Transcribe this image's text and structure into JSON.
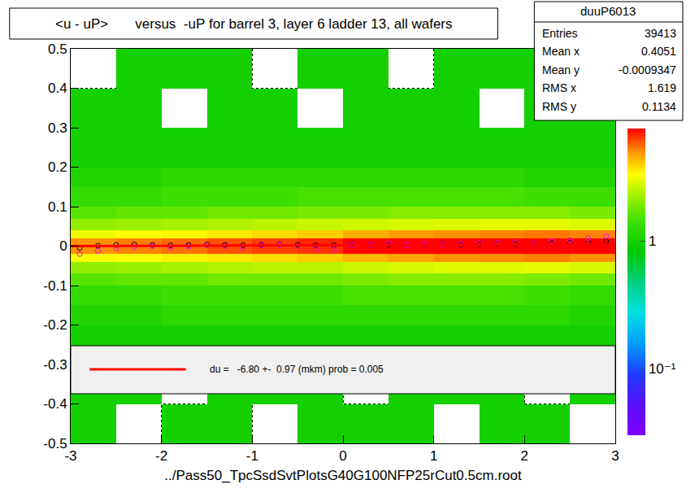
{
  "chart_data": {
    "type": "heatmap",
    "title": "<u - uP>       versus  -uP for barrel 3, layer 6 ladder 13, all wafers",
    "x_label": "../Pass50_TpcSsdSvtPlotsG40G100NFP25rCut0.5cm.root",
    "xlim": [
      -3,
      3
    ],
    "ylim": [
      -0.5,
      0.5
    ],
    "xticks": [
      -3,
      -2,
      -1,
      0,
      1,
      2,
      3
    ],
    "yticks": [
      -0.5,
      -0.4,
      -0.3,
      -0.2,
      -0.1,
      0,
      0.1,
      0.2,
      0.3,
      0.4,
      0.5
    ],
    "grid": true,
    "xbins": [
      -3,
      -2.5,
      -2,
      -1.5,
      -1,
      -0.5,
      0,
      0.5,
      1,
      1.5,
      2,
      2.5,
      3
    ],
    "ybins": [
      -0.5,
      -0.4,
      -0.3,
      -0.25,
      -0.2,
      -0.15,
      -0.1,
      -0.07,
      -0.04,
      -0.02,
      0,
      0.02,
      0.04,
      0.07,
      0.1,
      0.15,
      0.2,
      0.25,
      0.3,
      0.4,
      0.5
    ],
    "cells": [
      [
        1,
        null,
        1,
        1,
        null,
        1,
        1,
        1,
        null,
        1,
        1,
        null
      ],
      [
        1,
        1,
        null,
        1,
        1,
        1,
        null,
        1,
        1,
        1,
        null,
        1
      ],
      [
        1,
        1,
        1,
        1,
        1,
        1,
        1,
        1,
        1,
        1,
        1,
        1
      ],
      [
        1,
        1,
        1,
        1,
        1,
        1,
        1,
        1,
        1,
        1,
        1,
        1
      ],
      [
        1.1,
        1.1,
        1.2,
        1.2,
        1.2,
        1.2,
        1.2,
        1.2,
        1.2,
        1.2,
        1.2,
        1.1
      ],
      [
        1.3,
        1.3,
        1.4,
        1.4,
        1.4,
        1.4,
        1.5,
        1.5,
        1.5,
        1.5,
        1.4,
        1.3
      ],
      [
        1.6,
        1.7,
        1.7,
        1.8,
        1.8,
        1.8,
        1.9,
        2,
        2,
        2,
        1.9,
        1.8
      ],
      [
        2.1,
        2.2,
        2.3,
        2.4,
        2.5,
        2.5,
        2.7,
        2.8,
        2.9,
        2.9,
        3,
        2.8
      ],
      [
        3.2,
        3.3,
        3.5,
        3.6,
        3.8,
        4,
        4.4,
        4.7,
        5,
        5.1,
        5.3,
        5
      ],
      [
        5,
        5.2,
        5.5,
        6,
        6.3,
        6.6,
        7.5,
        8,
        8.5,
        9,
        9.2,
        9
      ],
      [
        5,
        5.3,
        5.6,
        6,
        6.4,
        6.8,
        7.6,
        8.2,
        8.7,
        9,
        9.4,
        9.2
      ],
      [
        3.1,
        3.3,
        3.4,
        3.6,
        3.8,
        4,
        4.5,
        4.8,
        5,
        5.2,
        5.4,
        5.2
      ],
      [
        2.1,
        2.2,
        2.3,
        2.4,
        2.5,
        2.6,
        2.7,
        2.8,
        2.9,
        3,
        3,
        2.9
      ],
      [
        1.6,
        1.7,
        1.7,
        1.8,
        1.8,
        1.9,
        1.9,
        2,
        2,
        2,
        2,
        1.9
      ],
      [
        1.3,
        1.3,
        1.4,
        1.4,
        1.4,
        1.5,
        1.5,
        1.5,
        1.5,
        1.5,
        1.4,
        1.4
      ],
      [
        1.1,
        1.1,
        1.2,
        1.2,
        1.2,
        1.2,
        1.2,
        1.2,
        1.2,
        1.2,
        1.1,
        1.1
      ],
      [
        1,
        1,
        1,
        1,
        1,
        1,
        1,
        1,
        1,
        1,
        1,
        1
      ],
      [
        1,
        1,
        1,
        1,
        1,
        1,
        1,
        1,
        1,
        1,
        1,
        1
      ],
      [
        1,
        1,
        null,
        1,
        1,
        null,
        1,
        1,
        1,
        null,
        1,
        1
      ],
      [
        null,
        1,
        1,
        1,
        null,
        1,
        1,
        null,
        1,
        1,
        1,
        1
      ]
    ],
    "zlim": [
      0.03,
      7.6
    ],
    "zticks": [
      {
        "value": 0.1,
        "label": "10⁻¹"
      },
      1
    ],
    "series": [
      {
        "type": "scatter",
        "color": "#000000",
        "marker": "circle-open",
        "x": [
          -2.9,
          -2.7,
          -2.5,
          -2.3,
          -2.1,
          -1.9,
          -1.7,
          -1.5,
          -1.3,
          -1.1,
          -0.9,
          -0.7,
          -0.5,
          -0.3,
          -0.1,
          0.1,
          0.3,
          0.5,
          0.7,
          0.9,
          1.1,
          1.3,
          1.5,
          1.7,
          1.9,
          2.1,
          2.3,
          2.5,
          2.7,
          2.9
        ],
        "values": [
          -0.004,
          0.001,
          0.003,
          0.004,
          0.003,
          0.002,
          0.003,
          0.004,
          0.003,
          0.002,
          0.003,
          0.004,
          0.003,
          0.002,
          0.002,
          0.003,
          0.004,
          0.004,
          0.003,
          0.004,
          0.005,
          0.004,
          0.005,
          0.006,
          0.005,
          0.006,
          0.007,
          0.008,
          0.009,
          0.012
        ]
      },
      {
        "type": "scatter",
        "color": "#ff00ff",
        "marker": "circle-open",
        "x": [
          -2.9,
          -2.7,
          -2.5,
          -2.3,
          -2.1,
          -1.9,
          -1.7,
          -1.5,
          -1.3,
          -1.1,
          -0.9,
          -0.7,
          -0.5,
          -0.3,
          -0.1,
          0.1,
          0.3,
          0.5,
          0.7,
          0.9,
          1.1,
          1.3,
          1.5,
          1.7,
          1.9,
          2.1,
          2.3,
          2.5,
          2.7,
          2.9
        ],
        "values": [
          -0.02,
          -0.012,
          -0.005,
          -0.002,
          0.0,
          -0.003,
          -0.001,
          0.002,
          0.0,
          -0.004,
          0.001,
          0.003,
          0.0,
          -0.008,
          -0.01,
          0.002,
          0.004,
          0.006,
          0.003,
          0.005,
          0.004,
          0.006,
          0.008,
          0.007,
          0.01,
          0.006,
          0.012,
          0.015,
          0.02,
          0.025
        ]
      },
      {
        "type": "line",
        "color": "#ff0000",
        "line_style": "solid",
        "name": "du =   -6.80 +-  0.97 (mkm) prob = 0.005",
        "x": [
          -3,
          3
        ],
        "values": [
          0.0,
          0.004
        ]
      }
    ],
    "stats": {
      "title": "duuP6013",
      "rows": [
        [
          "Entries",
          39413
        ],
        [
          "Mean x",
          0.4051
        ],
        [
          "Mean y",
          -0.0009347
        ],
        [
          "RMS x",
          1.619
        ],
        [
          "RMS y",
          0.1134
        ]
      ]
    }
  }
}
